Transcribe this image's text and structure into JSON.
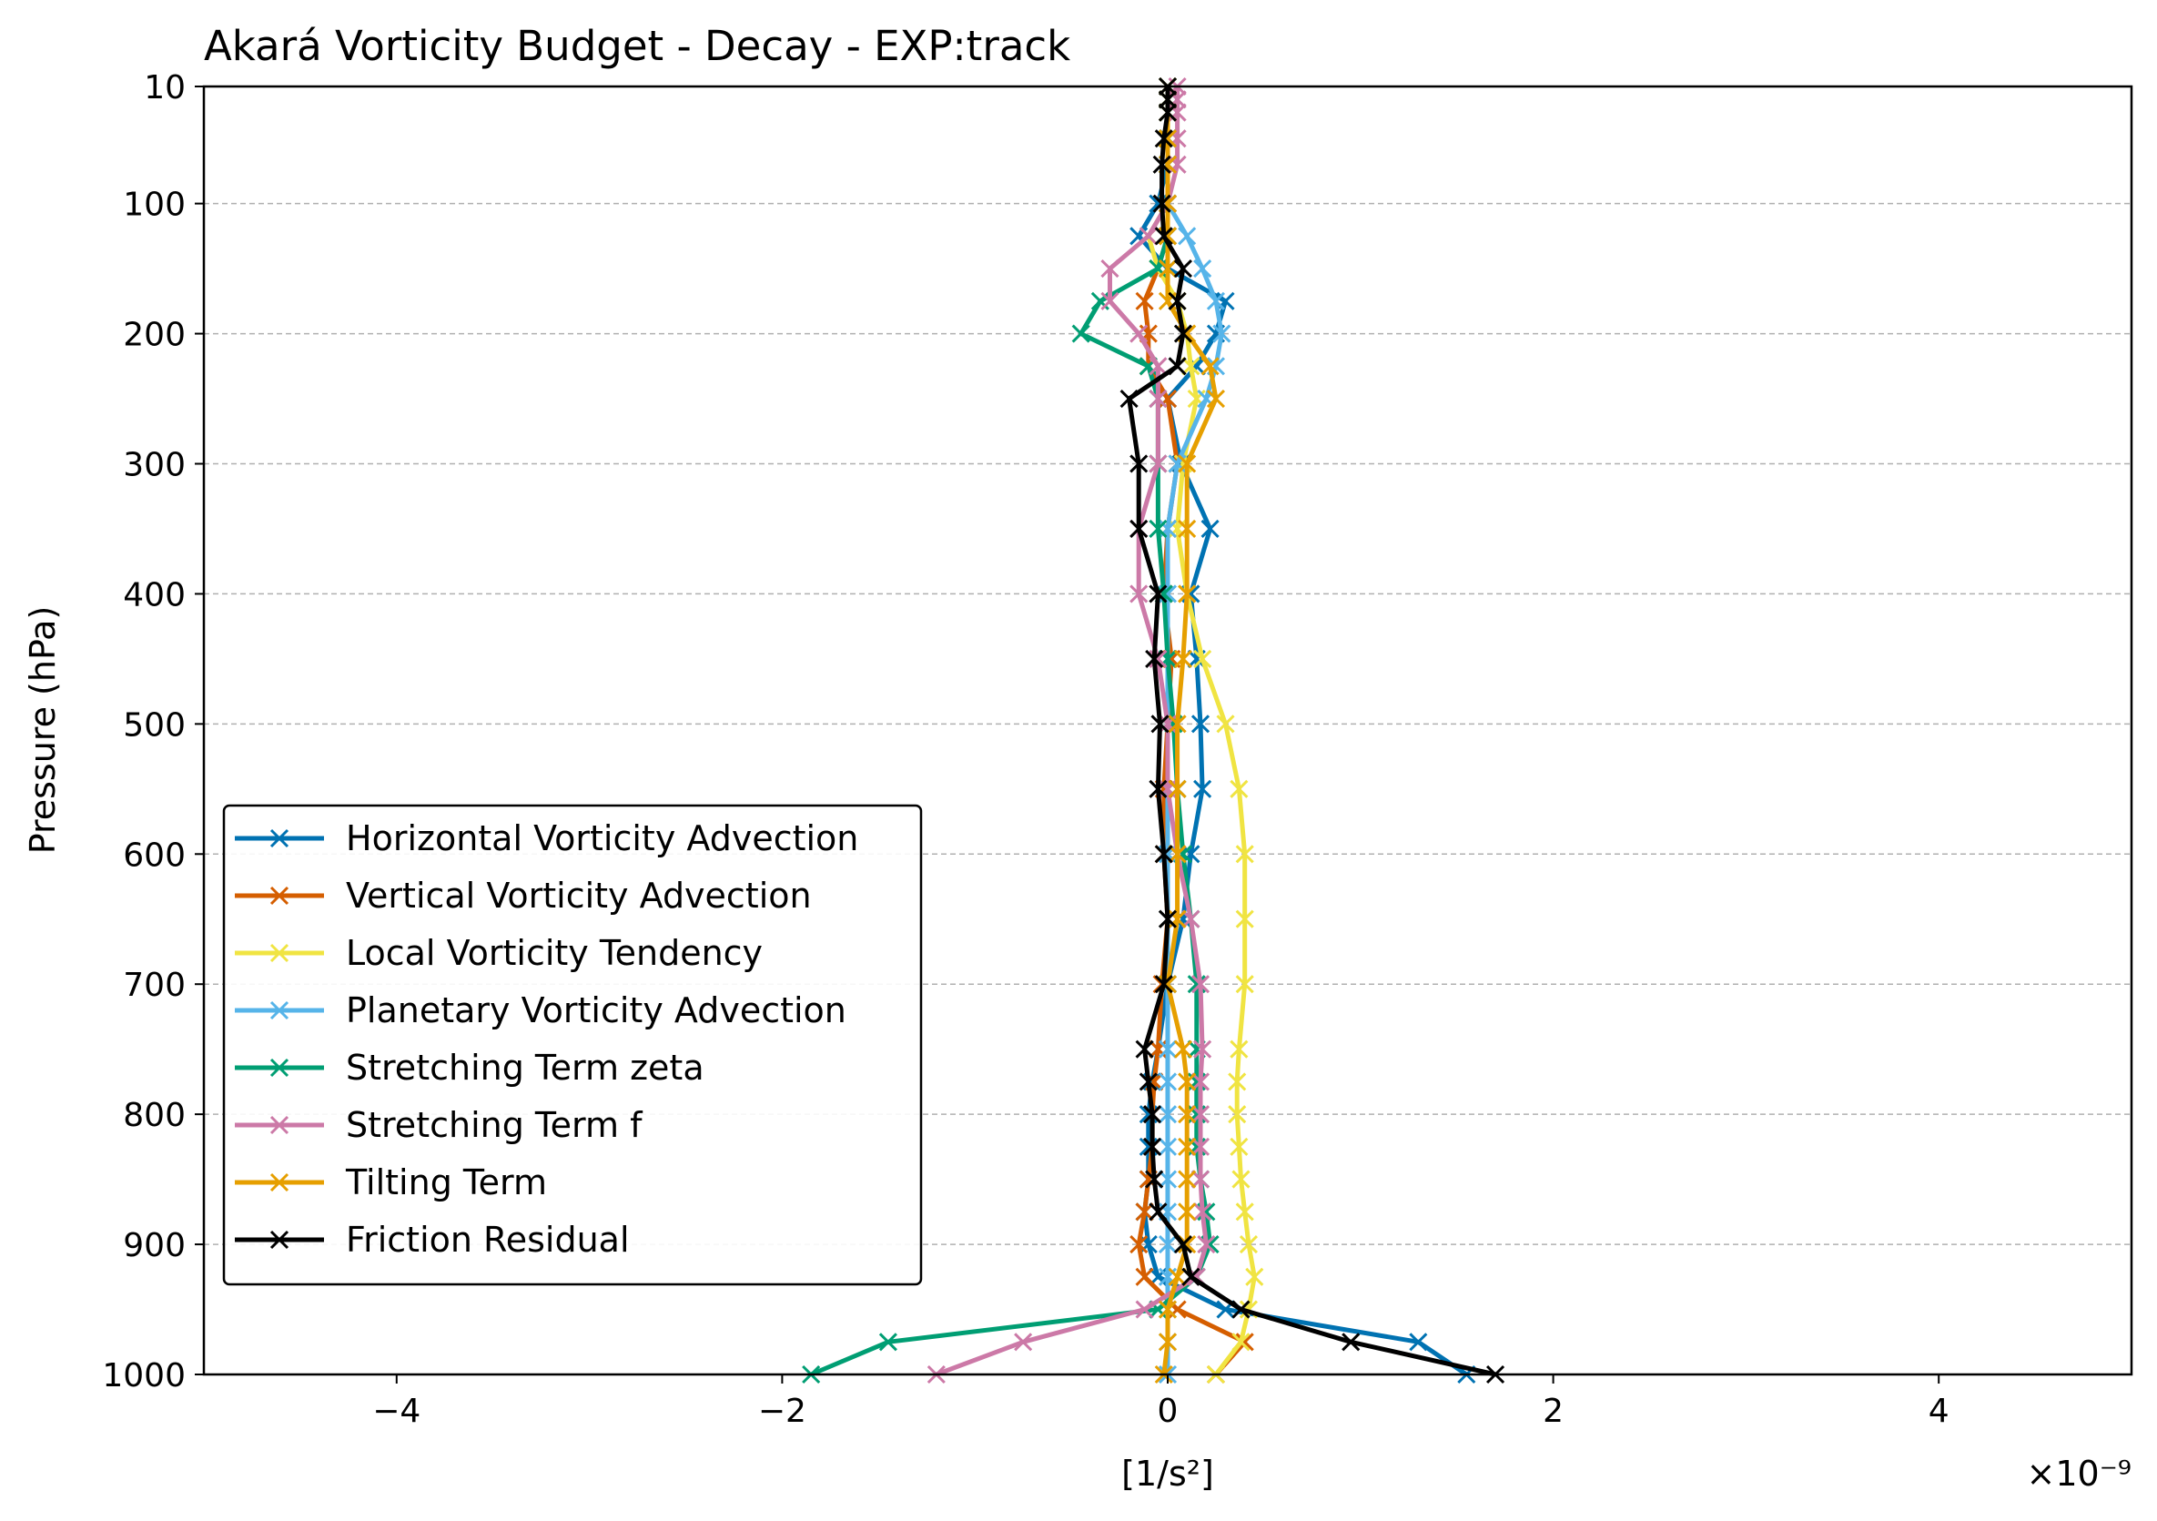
{
  "chart_data": {
    "type": "line",
    "title": "Akará Vorticity Budget - Decay - EXP:track",
    "xlabel": "[1/s²]",
    "ylabel": "Pressure (hPa)",
    "x_offset_text": "×10⁻⁹",
    "x_scale": 1e-09,
    "xlim": [
      -5,
      5
    ],
    "ylim": [
      1000,
      10
    ],
    "y_inverted": true,
    "x_ticks": [
      -4,
      -2,
      0,
      2,
      4
    ],
    "x_tick_labels": [
      "−4",
      "−2",
      "0",
      "2",
      "4"
    ],
    "y_ticks": [
      10,
      100,
      200,
      300,
      400,
      500,
      600,
      700,
      800,
      900,
      1000
    ],
    "y_tick_labels": [
      "10",
      "100",
      "200",
      "300",
      "400",
      "500",
      "600",
      "700",
      "800",
      "900",
      "1000"
    ],
    "grid": "horizontal dashed",
    "legend_position": "lower-left",
    "levels": [
      1000,
      975,
      950,
      925,
      900,
      875,
      850,
      825,
      800,
      775,
      750,
      700,
      650,
      600,
      550,
      500,
      450,
      400,
      350,
      300,
      250,
      225,
      200,
      175,
      150,
      125,
      100,
      70,
      50,
      30,
      20,
      10
    ],
    "series": [
      {
        "name": "Horizontal Vorticity Advection",
        "color": "#0072B2",
        "values": [
          1.55,
          1.3,
          0.3,
          -0.05,
          -0.1,
          -0.12,
          -0.1,
          -0.1,
          -0.1,
          -0.08,
          -0.05,
          0.0,
          0.08,
          0.12,
          0.18,
          0.17,
          0.15,
          0.12,
          0.22,
          0.07,
          0.0,
          0.15,
          0.25,
          0.3,
          0.0,
          -0.15,
          -0.05,
          0.0,
          0.0,
          0.0,
          0.0,
          0.0
        ]
      },
      {
        "name": "Vertical Vorticity Advection",
        "color": "#D55E00",
        "values": [
          0.25,
          0.4,
          0.05,
          -0.12,
          -0.15,
          -0.12,
          -0.1,
          -0.08,
          -0.08,
          -0.07,
          -0.05,
          -0.03,
          0.0,
          -0.02,
          -0.02,
          0.0,
          0.02,
          -0.02,
          0.0,
          0.05,
          0.0,
          -0.1,
          -0.1,
          -0.12,
          -0.05,
          0.0,
          0.0,
          0.0,
          0.0,
          0.0,
          0.0,
          0.0
        ]
      },
      {
        "name": "Local Vorticity Tendency",
        "color": "#F0E442",
        "values": [
          0.25,
          0.38,
          0.42,
          0.45,
          0.42,
          0.4,
          0.38,
          0.37,
          0.36,
          0.36,
          0.37,
          0.4,
          0.4,
          0.4,
          0.37,
          0.3,
          0.18,
          0.1,
          0.05,
          0.08,
          0.15,
          0.12,
          0.1,
          0.05,
          -0.05,
          -0.1,
          0.0,
          0.0,
          0.0,
          0.0,
          0.0,
          0.0
        ]
      },
      {
        "name": "Planetary Vorticity Advection",
        "color": "#56B4E9",
        "values": [
          0.0,
          0.0,
          0.0,
          0.0,
          0.0,
          0.0,
          0.0,
          0.0,
          0.0,
          0.0,
          0.0,
          0.0,
          0.0,
          0.0,
          0.0,
          0.0,
          0.0,
          0.0,
          0.0,
          0.05,
          0.2,
          0.25,
          0.28,
          0.25,
          0.18,
          0.1,
          0.0,
          0.0,
          0.0,
          0.0,
          0.0,
          0.0
        ]
      },
      {
        "name": "Stretching Term zeta",
        "color": "#009E73",
        "values": [
          -1.85,
          -1.45,
          -0.05,
          0.15,
          0.22,
          0.2,
          0.17,
          0.15,
          0.15,
          0.15,
          0.15,
          0.15,
          0.12,
          0.08,
          0.05,
          0.03,
          0.0,
          -0.02,
          -0.05,
          -0.05,
          -0.05,
          -0.1,
          -0.45,
          -0.35,
          -0.05,
          0.0,
          0.0,
          0.0,
          0.0,
          0.0,
          0.0,
          0.0
        ]
      },
      {
        "name": "Stretching Term f",
        "color": "#CC79A7",
        "values": [
          -1.2,
          -0.75,
          -0.12,
          0.15,
          0.2,
          0.18,
          0.17,
          0.17,
          0.17,
          0.17,
          0.18,
          0.17,
          0.12,
          0.05,
          0.0,
          0.0,
          -0.05,
          -0.15,
          -0.15,
          -0.05,
          -0.05,
          -0.05,
          -0.15,
          -0.3,
          -0.3,
          -0.1,
          0.0,
          0.05,
          0.05,
          0.05,
          0.05,
          0.05
        ]
      },
      {
        "name": "Tilting Term",
        "color": "#E69F00",
        "values": [
          -0.02,
          0.0,
          0.0,
          0.05,
          0.1,
          0.1,
          0.1,
          0.1,
          0.1,
          0.1,
          0.08,
          0.0,
          0.05,
          0.05,
          0.05,
          0.05,
          0.08,
          0.1,
          0.1,
          0.1,
          0.25,
          0.22,
          0.1,
          0.0,
          0.0,
          0.0,
          0.0,
          0.0,
          0.0,
          0.0,
          0.0,
          0.0
        ]
      },
      {
        "name": "Friction Residual",
        "color": "#000000",
        "values": [
          1.7,
          0.95,
          0.38,
          0.12,
          0.08,
          -0.05,
          -0.07,
          -0.08,
          -0.08,
          -0.1,
          -0.12,
          -0.02,
          0.0,
          -0.02,
          -0.05,
          -0.04,
          -0.07,
          -0.05,
          -0.15,
          -0.15,
          -0.2,
          0.05,
          0.08,
          0.05,
          0.08,
          -0.02,
          -0.03,
          -0.03,
          -0.02,
          0.0,
          0.0,
          0.0
        ]
      }
    ]
  }
}
